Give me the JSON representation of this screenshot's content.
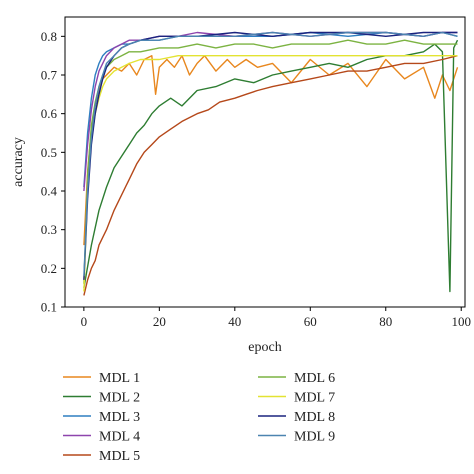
{
  "chart_data": {
    "type": "line",
    "xlabel": "epoch",
    "ylabel": "accuracy",
    "xlim": [
      -5,
      101
    ],
    "ylim": [
      0.1,
      0.85
    ],
    "xticks": [
      0,
      20,
      40,
      60,
      80,
      100
    ],
    "yticks": [
      0.1,
      0.2,
      0.3,
      0.4,
      0.5,
      0.6,
      0.7,
      0.8
    ],
    "grid": false,
    "legend": "bottom, two columns",
    "series": [
      {
        "name": "MDL 1",
        "color": "#e8871e",
        "x": [
          0,
          1,
          2,
          3,
          4,
          5,
          6,
          8,
          10,
          12,
          14,
          16,
          18,
          19,
          20,
          22,
          24,
          26,
          28,
          30,
          32,
          35,
          38,
          40,
          43,
          46,
          50,
          55,
          60,
          65,
          70,
          75,
          80,
          85,
          90,
          93,
          95,
          97,
          99
        ],
        "y": [
          0.26,
          0.45,
          0.56,
          0.62,
          0.66,
          0.69,
          0.7,
          0.72,
          0.71,
          0.73,
          0.7,
          0.74,
          0.75,
          0.65,
          0.72,
          0.74,
          0.72,
          0.75,
          0.7,
          0.73,
          0.75,
          0.71,
          0.74,
          0.72,
          0.74,
          0.72,
          0.73,
          0.68,
          0.74,
          0.7,
          0.73,
          0.67,
          0.74,
          0.69,
          0.72,
          0.64,
          0.7,
          0.66,
          0.72
        ]
      },
      {
        "name": "MDL 2",
        "color": "#2e7d32",
        "x": [
          0,
          2,
          4,
          6,
          8,
          10,
          12,
          14,
          16,
          18,
          20,
          23,
          26,
          30,
          35,
          40,
          45,
          50,
          55,
          60,
          65,
          70,
          75,
          80,
          85,
          90,
          93,
          95,
          97,
          98,
          99
        ],
        "y": [
          0.15,
          0.26,
          0.35,
          0.41,
          0.46,
          0.49,
          0.52,
          0.55,
          0.57,
          0.6,
          0.62,
          0.64,
          0.62,
          0.66,
          0.67,
          0.69,
          0.68,
          0.7,
          0.71,
          0.72,
          0.73,
          0.72,
          0.74,
          0.75,
          0.75,
          0.76,
          0.78,
          0.76,
          0.14,
          0.77,
          0.79
        ]
      },
      {
        "name": "MDL 3",
        "color": "#2f7fc1",
        "x": [
          0,
          1,
          2,
          3,
          4,
          5,
          6,
          8,
          10,
          12,
          15,
          20,
          25,
          30,
          40,
          50,
          60,
          70,
          80,
          90,
          95,
          99
        ],
        "y": [
          0.41,
          0.55,
          0.64,
          0.7,
          0.73,
          0.75,
          0.76,
          0.77,
          0.78,
          0.78,
          0.79,
          0.79,
          0.8,
          0.8,
          0.8,
          0.8,
          0.81,
          0.8,
          0.81,
          0.8,
          0.81,
          0.8
        ]
      },
      {
        "name": "MDL 4",
        "color": "#8e44ad",
        "x": [
          0,
          1,
          2,
          3,
          4,
          5,
          6,
          8,
          10,
          12,
          15,
          20,
          25,
          30,
          40,
          50,
          60,
          70,
          80,
          90,
          95,
          99
        ],
        "y": [
          0.4,
          0.52,
          0.61,
          0.67,
          0.71,
          0.73,
          0.75,
          0.77,
          0.78,
          0.79,
          0.79,
          0.8,
          0.8,
          0.81,
          0.8,
          0.81,
          0.8,
          0.81,
          0.81,
          0.8,
          0.81,
          0.81
        ]
      },
      {
        "name": "MDL 5",
        "color": "#b5481a",
        "x": [
          0,
          1,
          2,
          3,
          4,
          5,
          6,
          8,
          10,
          12,
          14,
          16,
          18,
          20,
          23,
          26,
          30,
          33,
          36,
          40,
          43,
          46,
          50,
          55,
          60,
          65,
          70,
          75,
          80,
          85,
          90,
          95,
          99
        ],
        "y": [
          0.13,
          0.17,
          0.2,
          0.22,
          0.26,
          0.28,
          0.3,
          0.35,
          0.39,
          0.43,
          0.47,
          0.5,
          0.52,
          0.54,
          0.56,
          0.58,
          0.6,
          0.61,
          0.63,
          0.64,
          0.65,
          0.66,
          0.67,
          0.68,
          0.69,
          0.7,
          0.71,
          0.71,
          0.72,
          0.73,
          0.73,
          0.74,
          0.75
        ]
      },
      {
        "name": "MDL 6",
        "color": "#7cb342",
        "x": [
          0,
          1,
          2,
          3,
          4,
          5,
          6,
          8,
          10,
          12,
          15,
          20,
          25,
          30,
          35,
          40,
          45,
          50,
          55,
          60,
          65,
          70,
          75,
          80,
          85,
          90,
          95,
          99
        ],
        "y": [
          0.16,
          0.44,
          0.57,
          0.63,
          0.67,
          0.7,
          0.72,
          0.74,
          0.75,
          0.76,
          0.76,
          0.77,
          0.77,
          0.78,
          0.77,
          0.78,
          0.78,
          0.77,
          0.78,
          0.78,
          0.78,
          0.79,
          0.78,
          0.78,
          0.79,
          0.78,
          0.78,
          0.78
        ]
      },
      {
        "name": "MDL 7",
        "color": "#e3e332",
        "x": [
          0,
          1,
          2,
          3,
          4,
          5,
          6,
          8,
          10,
          12,
          15,
          20,
          25,
          30,
          40,
          50,
          60,
          70,
          80,
          90,
          95,
          99
        ],
        "y": [
          0.14,
          0.4,
          0.53,
          0.6,
          0.64,
          0.67,
          0.69,
          0.71,
          0.72,
          0.73,
          0.74,
          0.74,
          0.75,
          0.75,
          0.75,
          0.75,
          0.75,
          0.75,
          0.75,
          0.75,
          0.75,
          0.75
        ]
      },
      {
        "name": "MDL 8",
        "color": "#1a237e",
        "x": [
          0,
          1,
          2,
          3,
          4,
          5,
          6,
          8,
          10,
          12,
          15,
          20,
          25,
          30,
          40,
          50,
          60,
          70,
          80,
          90,
          95,
          99
        ],
        "y": [
          0.17,
          0.38,
          0.52,
          0.6,
          0.65,
          0.69,
          0.72,
          0.75,
          0.77,
          0.78,
          0.79,
          0.8,
          0.8,
          0.8,
          0.81,
          0.8,
          0.81,
          0.81,
          0.8,
          0.81,
          0.81,
          0.81
        ]
      },
      {
        "name": "MDL 9",
        "color": "#4c84b0",
        "x": [
          0,
          1,
          2,
          3,
          4,
          5,
          6,
          8,
          10,
          12,
          15,
          20,
          25,
          30,
          40,
          50,
          60,
          70,
          80,
          90,
          95,
          99
        ],
        "y": [
          0.18,
          0.4,
          0.54,
          0.62,
          0.67,
          0.7,
          0.73,
          0.75,
          0.77,
          0.78,
          0.79,
          0.79,
          0.8,
          0.8,
          0.8,
          0.81,
          0.8,
          0.81,
          0.81,
          0.8,
          0.81,
          0.8
        ]
      }
    ]
  }
}
